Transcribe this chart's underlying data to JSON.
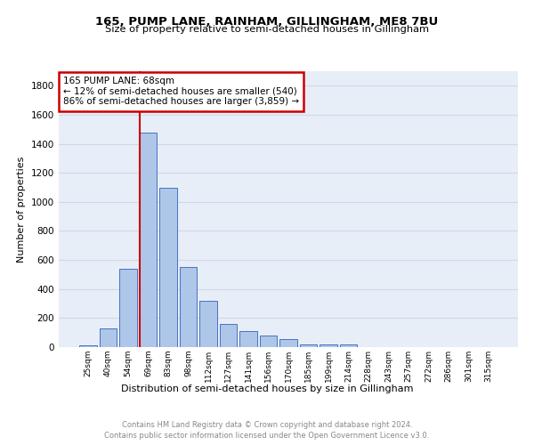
{
  "title1": "165, PUMP LANE, RAINHAM, GILLINGHAM, ME8 7BU",
  "title2": "Size of property relative to semi-detached houses in Gillingham",
  "xlabel": "Distribution of semi-detached houses by size in Gillingham",
  "ylabel": "Number of properties",
  "footnote1": "Contains HM Land Registry data © Crown copyright and database right 2024.",
  "footnote2": "Contains public sector information licensed under the Open Government Licence v3.0.",
  "bar_labels": [
    "25sqm",
    "40sqm",
    "54sqm",
    "69sqm",
    "83sqm",
    "98sqm",
    "112sqm",
    "127sqm",
    "141sqm",
    "156sqm",
    "170sqm",
    "185sqm",
    "199sqm",
    "214sqm",
    "228sqm",
    "243sqm",
    "257sqm",
    "272sqm",
    "286sqm",
    "301sqm",
    "315sqm"
  ],
  "bar_values": [
    10,
    130,
    540,
    1480,
    1100,
    550,
    320,
    160,
    110,
    80,
    55,
    20,
    20,
    20,
    0,
    0,
    0,
    0,
    0,
    0,
    0
  ],
  "bar_color": "#aec6e8",
  "bar_edge_color": "#4472c4",
  "property_line_bin": 3,
  "property_sqm": "68sqm",
  "pct_smaller": 12,
  "count_smaller": 540,
  "pct_larger": 86,
  "count_larger": "3,859",
  "annotation_box_color": "#ffffff",
  "annotation_box_edge_color": "#cc0000",
  "line_color": "#cc0000",
  "grid_color": "#d0d8e8",
  "background_color": "#e8eef8",
  "ylim": [
    0,
    1900
  ],
  "yticks": [
    0,
    200,
    400,
    600,
    800,
    1000,
    1200,
    1400,
    1600,
    1800
  ]
}
